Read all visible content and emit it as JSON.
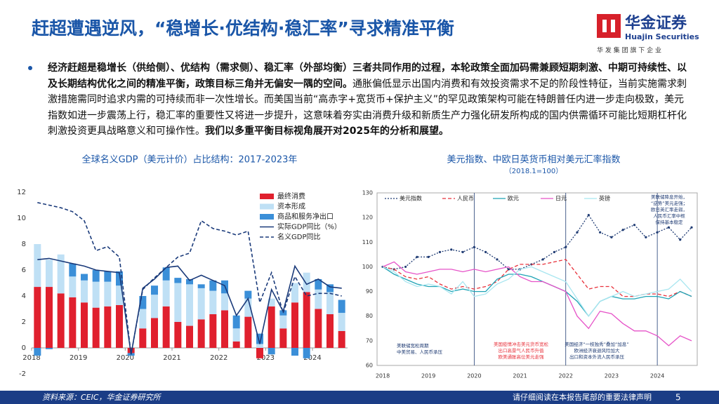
{
  "header": {
    "title": "赶超遭遇逆风，“稳增长·优结构·稳汇率”寻求精准平衡",
    "logo": {
      "name": "华金证券",
      "english": "Huajin Securities",
      "tagline": "华 发 集 团 旗 下 企 业"
    }
  },
  "body": {
    "paragraph": [
      {
        "text": "经济赶超是稳增长（供给侧）、优结构（需求侧）、稳汇率（外部均衡）三者共同作用的过程，本轮政策全面加码需兼顾短期刺激、中期可持续性、以及长期结构优化之间的精准平衡，政策目标三角并无偏安一隅的空间。",
        "bold": true
      },
      {
        "text": "通胀偏低显示出国内消费和有效投资需求不足的阶段性特征，当前实施需求刺激措施需同时追求内需的可持续而非一次性增长。而美国当前“高赤字+宽货币+保护主义”的罕见政策架构可能在特朗普任内进一步走向极致，美元指数如进一步震荡上行，稳汇率的重要性又将进一步提升，这意味着夯实由消费升级和新质生产力强化研发所构成的国内供需循环可能比短期杠杆化刺激投资更具战略意义和可操作性。",
        "bold": false
      },
      {
        "text": "我们以多重平衡目标视角展开对2025年的分析和展望。",
        "bold": true
      }
    ]
  },
  "chart_data": [
    {
      "type": "bar",
      "stacked": true,
      "title": "全球名义GDP（美元计价）占比结构：2017-2023年",
      "categories": [
        "2018",
        null,
        null,
        null,
        "2019",
        null,
        null,
        null,
        "2020",
        null,
        null,
        null,
        "2021",
        null,
        null,
        null,
        "2022",
        null,
        null,
        null,
        "2023",
        null,
        null,
        null,
        "2024",
        null,
        null
      ],
      "series": [
        {
          "name": "最终消费",
          "type": "bar",
          "color": "#e0202e",
          "values": [
            4.7,
            4.7,
            4.2,
            3.9,
            3.5,
            3.1,
            3.2,
            3.3,
            -0.4,
            1.5,
            2.3,
            3.2,
            2.0,
            1.7,
            2.2,
            2.6,
            2.9,
            0.5,
            2.4,
            -0.8,
            3.2,
            1.5,
            3.5,
            4.3,
            3.0,
            2.6,
            1.3
          ]
        },
        {
          "name": "资本形成",
          "type": "bar",
          "color": "#bfe0f5",
          "values": [
            3.3,
            2.1,
            3.0,
            1.6,
            1.7,
            2.0,
            1.9,
            1.5,
            0.0,
            1.5,
            1.8,
            2.0,
            3.0,
            3.2,
            2.4,
            1.8,
            1.3,
            1.0,
            1.4,
            0.3,
            0.6,
            1.0,
            1.5,
            1.5,
            1.5,
            1.7,
            1.4
          ]
        },
        {
          "name": "商品和服务净出口",
          "type": "bar",
          "color": "#3b8fd8",
          "values": [
            -0.6,
            -0.1,
            0.0,
            1.0,
            0.5,
            0.9,
            0.8,
            1.1,
            -0.2,
            1.0,
            0.7,
            1.0,
            0.4,
            0.4,
            0.3,
            0.8,
            1.0,
            1.0,
            0.6,
            0.8,
            -0.5,
            0.4,
            -0.6,
            -0.8,
            0.8,
            0.6,
            1.0
          ]
        },
        {
          "name": "实际GDP同比（%）",
          "type": "line",
          "color": "#1a3a7a",
          "line_style": "solid",
          "values": [
            6.8,
            6.9,
            6.7,
            6.5,
            6.3,
            6.0,
            5.9,
            5.8,
            -0.5,
            4.6,
            5.3,
            6.2,
            6.3,
            5.2,
            5.6,
            5.2,
            4.8,
            2.5,
            3.8,
            0.3,
            4.5,
            2.8,
            6.3,
            4.9,
            5.3,
            4.7,
            4.6
          ]
        },
        {
          "name": "名义GDP同比",
          "type": "line",
          "color": "#1a3a7a",
          "line_style": "dashed",
          "values": [
            11.2,
            11.0,
            10.8,
            10.5,
            9.8,
            7.5,
            7.8,
            7.0,
            -0.5,
            4.5,
            5.4,
            6.2,
            7.0,
            7.3,
            9.8,
            9.2,
            9.0,
            8.7,
            9.0,
            3.5,
            5.8,
            2.7,
            5.5,
            4.0,
            4.2,
            4.2,
            4.0
          ]
        }
      ],
      "ylim": [
        -2,
        12
      ],
      "yticks": [
        -2,
        0,
        2,
        4,
        6,
        8,
        10,
        12
      ],
      "legend": "upper right"
    },
    {
      "type": "line",
      "title": "美元指数、中欧日英货币相对美元汇率指数",
      "subtitle": "（2018.1=100）",
      "categories": [
        "2018",
        null,
        null,
        null,
        "2019",
        null,
        null,
        null,
        "2020",
        null,
        null,
        null,
        "2021",
        null,
        null,
        null,
        "2022",
        null,
        null,
        null,
        "2023",
        null,
        null,
        null,
        "2024",
        null,
        null,
        null
      ],
      "series": [
        {
          "name": "美元指数",
          "color": "#1f3b73",
          "line_style": "dotted",
          "marker": true,
          "values": [
            100,
            99,
            100,
            104,
            104,
            106,
            107,
            106,
            108,
            106,
            103,
            99,
            99,
            101,
            103,
            106,
            108,
            114,
            121,
            114,
            112,
            115,
            117,
            112,
            114,
            116,
            111,
            116
          ]
        },
        {
          "name": "人民币",
          "color": "#e8323c",
          "line_style": "dashed",
          "marker": false,
          "values": [
            100,
            99,
            96,
            95,
            96,
            93,
            91,
            92,
            91,
            92,
            94,
            99,
            101,
            101,
            101,
            102,
            103,
            97,
            91,
            92,
            92,
            88,
            88,
            89,
            89,
            88,
            90,
            88
          ]
        },
        {
          "name": "欧元",
          "color": "#1fa3b5",
          "line_style": "solid",
          "marker": false,
          "values": [
            100,
            97,
            95,
            93,
            92,
            92,
            90,
            91,
            90,
            90,
            95,
            97,
            97,
            96,
            94,
            92,
            90,
            86,
            80,
            86,
            88,
            87,
            87,
            88,
            88,
            87,
            90,
            88
          ]
        },
        {
          "name": "日元",
          "color": "#e653c8",
          "line_style": "solid",
          "marker": false,
          "values": [
            100,
            102,
            98,
            97,
            98,
            99,
            99,
            98,
            99,
            98,
            99,
            100,
            96,
            94,
            94,
            92,
            90,
            80,
            75,
            82,
            81,
            77,
            74,
            74,
            72,
            68,
            72,
            70
          ]
        },
        {
          "name": "英镑",
          "color": "#a8e6f0",
          "line_style": "solid",
          "marker": false,
          "values": [
            100,
            98,
            94,
            92,
            93,
            92,
            89,
            94,
            88,
            89,
            93,
            95,
            99,
            100,
            98,
            96,
            94,
            87,
            80,
            86,
            88,
            90,
            88,
            89,
            90,
            91,
            95,
            90
          ]
        }
      ],
      "ylim": [
        60,
        130
      ],
      "yticks": [
        60,
        70,
        80,
        90,
        100,
        110,
        120,
        130
      ],
      "annotations": [
        {
          "color": "#1f3b73",
          "lines": [
            "美联储宽松周期",
            "中美贸易、人民币承压"
          ]
        },
        {
          "color": "#e8323c",
          "lines": [
            "美国疫情冲击美元货币宽松",
            "出口高景气人民币升值",
            "欧美通胀高位美元走强"
          ]
        },
        {
          "color": "#1f3b73",
          "lines": [
            "美国经济“一枝独秀”叠加“加息”",
            "欧洲经济衰退风险加大",
            "出口和资本外流人民币承压"
          ]
        },
        {
          "color": "#1f3b73",
          "lines": [
            "美联储降息开始，",
            "“逆势”美元走强；",
            "欧日英汇率走弱，",
            "人民币汇率中枢",
            "保持基本稳定"
          ]
        }
      ]
    }
  ],
  "footer": {
    "source": "资料来源：CEIC，华金证券研究所",
    "disclaimer": "请仔细阅读在本报告尾部的重要法律声明",
    "page": "5"
  }
}
